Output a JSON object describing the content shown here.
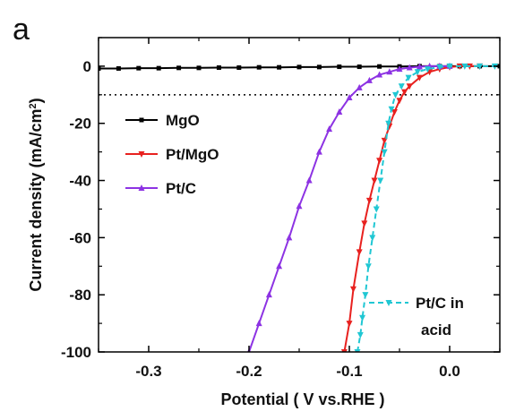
{
  "panel_label": "a",
  "chart_data": {
    "type": "line",
    "xlabel": "Potential ( V vs.RHE )",
    "ylabel_main": "Current density (mA/cm",
    "ylabel_sup": "2",
    "ylabel_end": ")",
    "xlim": [
      -0.35,
      0.05
    ],
    "ylim": [
      -100,
      10
    ],
    "x_ticks": [
      -0.3,
      -0.2,
      -0.1,
      0.0
    ],
    "x_tick_labels": [
      "-0.3",
      "-0.2",
      "-0.1",
      "0.0"
    ],
    "y_ticks": [
      0,
      -20,
      -40,
      -60,
      -80,
      -100
    ],
    "y_tick_labels": [
      "0",
      "-20",
      "-40",
      "-60",
      "-80",
      "-100"
    ],
    "reference_line": {
      "y": -10,
      "style": "dotted",
      "color": "#000000"
    },
    "legend_placement": "left-middle",
    "series": [
      {
        "name": "MgO",
        "color": "#000000",
        "marker": "square",
        "dashed": false,
        "points": [
          [
            -0.35,
            -0.8
          ],
          [
            -0.33,
            -0.8
          ],
          [
            -0.31,
            -0.7
          ],
          [
            -0.29,
            -0.7
          ],
          [
            -0.27,
            -0.6
          ],
          [
            -0.25,
            -0.6
          ],
          [
            -0.23,
            -0.5
          ],
          [
            -0.21,
            -0.5
          ],
          [
            -0.19,
            -0.4
          ],
          [
            -0.17,
            -0.4
          ],
          [
            -0.15,
            -0.3
          ],
          [
            -0.13,
            -0.3
          ],
          [
            -0.11,
            -0.2
          ],
          [
            -0.09,
            -0.2
          ],
          [
            -0.07,
            -0.1
          ],
          [
            -0.05,
            -0.1
          ],
          [
            -0.03,
            0.0
          ],
          [
            -0.01,
            0.0
          ],
          [
            0.01,
            0.0
          ],
          [
            0.03,
            0.0
          ],
          [
            0.05,
            0.0
          ]
        ]
      },
      {
        "name": "Pt/MgO",
        "color": "#e8211f",
        "marker": "triangle-down",
        "dashed": false,
        "points": [
          [
            -0.105,
            -100
          ],
          [
            -0.1,
            -90
          ],
          [
            -0.096,
            -78
          ],
          [
            -0.09,
            -65
          ],
          [
            -0.085,
            -55
          ],
          [
            -0.08,
            -47
          ],
          [
            -0.075,
            -40
          ],
          [
            -0.07,
            -33
          ],
          [
            -0.065,
            -26
          ],
          [
            -0.06,
            -21
          ],
          [
            -0.055,
            -16
          ],
          [
            -0.05,
            -12
          ],
          [
            -0.045,
            -9
          ],
          [
            -0.04,
            -7
          ],
          [
            -0.03,
            -4
          ],
          [
            -0.02,
            -2
          ],
          [
            -0.01,
            -1
          ],
          [
            0.0,
            -0.3
          ],
          [
            0.01,
            0.0
          ],
          [
            0.02,
            0.0
          ],
          [
            0.03,
            0.0
          ]
        ]
      },
      {
        "name": "Pt/C",
        "color": "#8d33e3",
        "marker": "triangle-up",
        "dashed": false,
        "points": [
          [
            -0.2,
            -100
          ],
          [
            -0.19,
            -90
          ],
          [
            -0.18,
            -80
          ],
          [
            -0.17,
            -70
          ],
          [
            -0.16,
            -60
          ],
          [
            -0.15,
            -49
          ],
          [
            -0.14,
            -40
          ],
          [
            -0.13,
            -30
          ],
          [
            -0.12,
            -22
          ],
          [
            -0.11,
            -16
          ],
          [
            -0.1,
            -11
          ],
          [
            -0.09,
            -7.5
          ],
          [
            -0.08,
            -5
          ],
          [
            -0.07,
            -3
          ],
          [
            -0.06,
            -2
          ],
          [
            -0.05,
            -1
          ],
          [
            -0.04,
            -0.5
          ],
          [
            -0.03,
            -0.2
          ],
          [
            -0.02,
            0.0
          ],
          [
            -0.01,
            0.0
          ],
          [
            0.0,
            0.0
          ]
        ]
      },
      {
        "name": "Pt/C in acid",
        "label_lines": [
          "Pt/C in",
          "acid"
        ],
        "color": "#20c7d3",
        "marker": "triangle-down",
        "dashed": true,
        "points": [
          [
            -0.092,
            -100
          ],
          [
            -0.089,
            -94
          ],
          [
            -0.087,
            -88
          ],
          [
            -0.084,
            -80
          ],
          [
            -0.081,
            -70
          ],
          [
            -0.077,
            -60
          ],
          [
            -0.073,
            -50
          ],
          [
            -0.069,
            -40
          ],
          [
            -0.065,
            -30
          ],
          [
            -0.061,
            -20
          ],
          [
            -0.058,
            -15
          ],
          [
            -0.054,
            -10
          ],
          [
            -0.048,
            -7
          ],
          [
            -0.041,
            -4
          ],
          [
            -0.032,
            -2
          ],
          [
            -0.022,
            -1
          ],
          [
            -0.01,
            -0.3
          ],
          [
            0.0,
            0.0
          ],
          [
            0.015,
            0.0
          ],
          [
            0.03,
            0.0
          ],
          [
            0.045,
            0.0
          ]
        ]
      }
    ]
  }
}
